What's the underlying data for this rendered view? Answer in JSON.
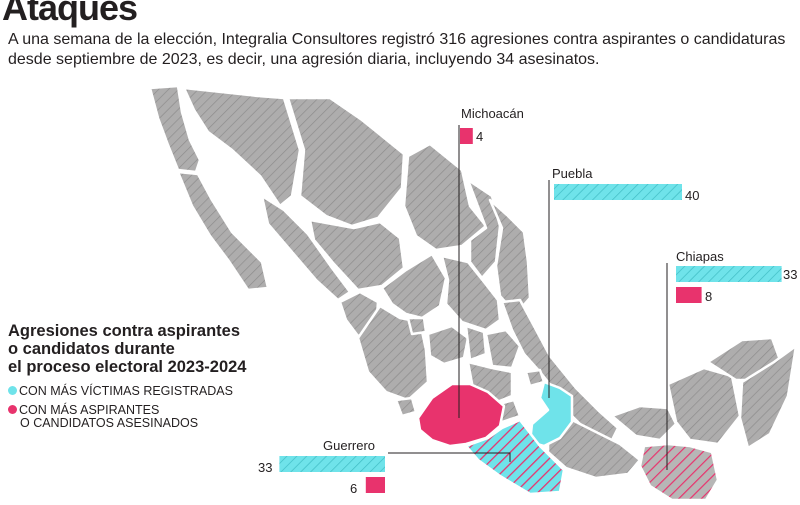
{
  "header": {
    "title": "Ataques",
    "subtitle": "A una semana de la elección, Integralia Consultores registró 316 agresiones contra aspirantes o candidaturas desde septiembre de 2023, es decir, una agresión diaria, incluyendo 34 asesinatos."
  },
  "legend": {
    "title_line1": "Agresiones contra aspirantes",
    "title_line2": "o candidatos durante",
    "title_line3": "el proceso electoral 2023-2024",
    "item_victims": "CON MÁS VÍCTIMAS REGISTRADAS",
    "item_killed_line1": "CON MÁS ASPIRANTES",
    "item_killed_line2": "O CANDIDATOS ASESINADOS",
    "color_victims": "#6fe3ea",
    "color_killed": "#e8336d"
  },
  "states": {
    "michoacan": {
      "name": "Michoacán",
      "killed": "4"
    },
    "puebla": {
      "name": "Puebla",
      "victims": "40"
    },
    "chiapas": {
      "name": "Chiapas",
      "victims": "33",
      "killed": "8"
    },
    "guerrero": {
      "name": "Guerrero",
      "victims": "33",
      "killed": "6"
    }
  },
  "chart_data": {
    "type": "bar",
    "categories": [
      "Michoacán",
      "Puebla",
      "Chiapas",
      "Guerrero"
    ],
    "series": [
      {
        "name": "CON MÁS VÍCTIMAS REGISTRADAS",
        "values": [
          null,
          40,
          33,
          33
        ]
      },
      {
        "name": "CON MÁS ASPIRANTES O CANDIDATOS ASESINADOS",
        "values": [
          4,
          null,
          8,
          6
        ]
      }
    ]
  }
}
